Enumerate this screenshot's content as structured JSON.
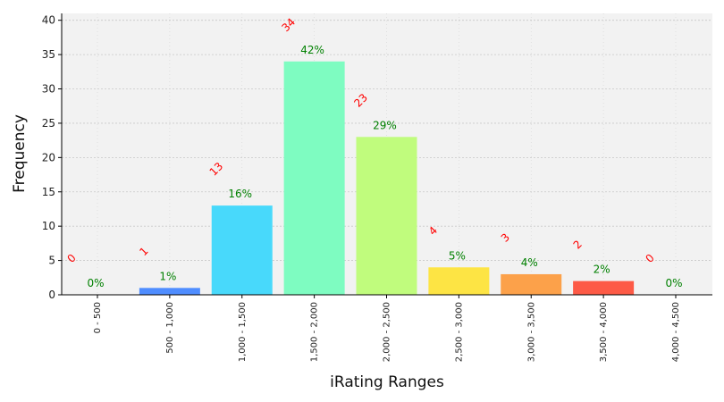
{
  "chart_data": {
    "type": "bar",
    "xlabel": "iRating Ranges",
    "ylabel": "Frequency",
    "ylim": [
      0,
      41
    ],
    "yticks": [
      0,
      5,
      10,
      15,
      20,
      25,
      30,
      35,
      40
    ],
    "grid": true,
    "categories": [
      "0 - 500",
      "500 - 1,000",
      "1,000 - 1,500",
      "1,500 - 2,000",
      "2,000 - 2,500",
      "2,500 - 3,000",
      "3,000 - 3,500",
      "3,500 - 4,000",
      "4,000 - 4,500"
    ],
    "values": [
      0,
      1,
      13,
      34,
      23,
      4,
      3,
      2,
      0
    ],
    "count_labels": [
      "0",
      "1",
      "13",
      "34",
      "23",
      "4",
      "3",
      "2",
      "0"
    ],
    "percent_labels": [
      "0%",
      "1%",
      "16%",
      "42%",
      "29%",
      "5%",
      "4%",
      "2%",
      "0%"
    ],
    "bar_colors": [
      "#3d5afe",
      "#4f8dff",
      "#48d9fb",
      "#7efcc1",
      "#c0fc7d",
      "#fde444",
      "#fca14a",
      "#fd5a46",
      "#e53935"
    ],
    "count_label_color": "#ff0000",
    "percent_label_color": "#008000",
    "plot_background": "#f2f2f2"
  }
}
